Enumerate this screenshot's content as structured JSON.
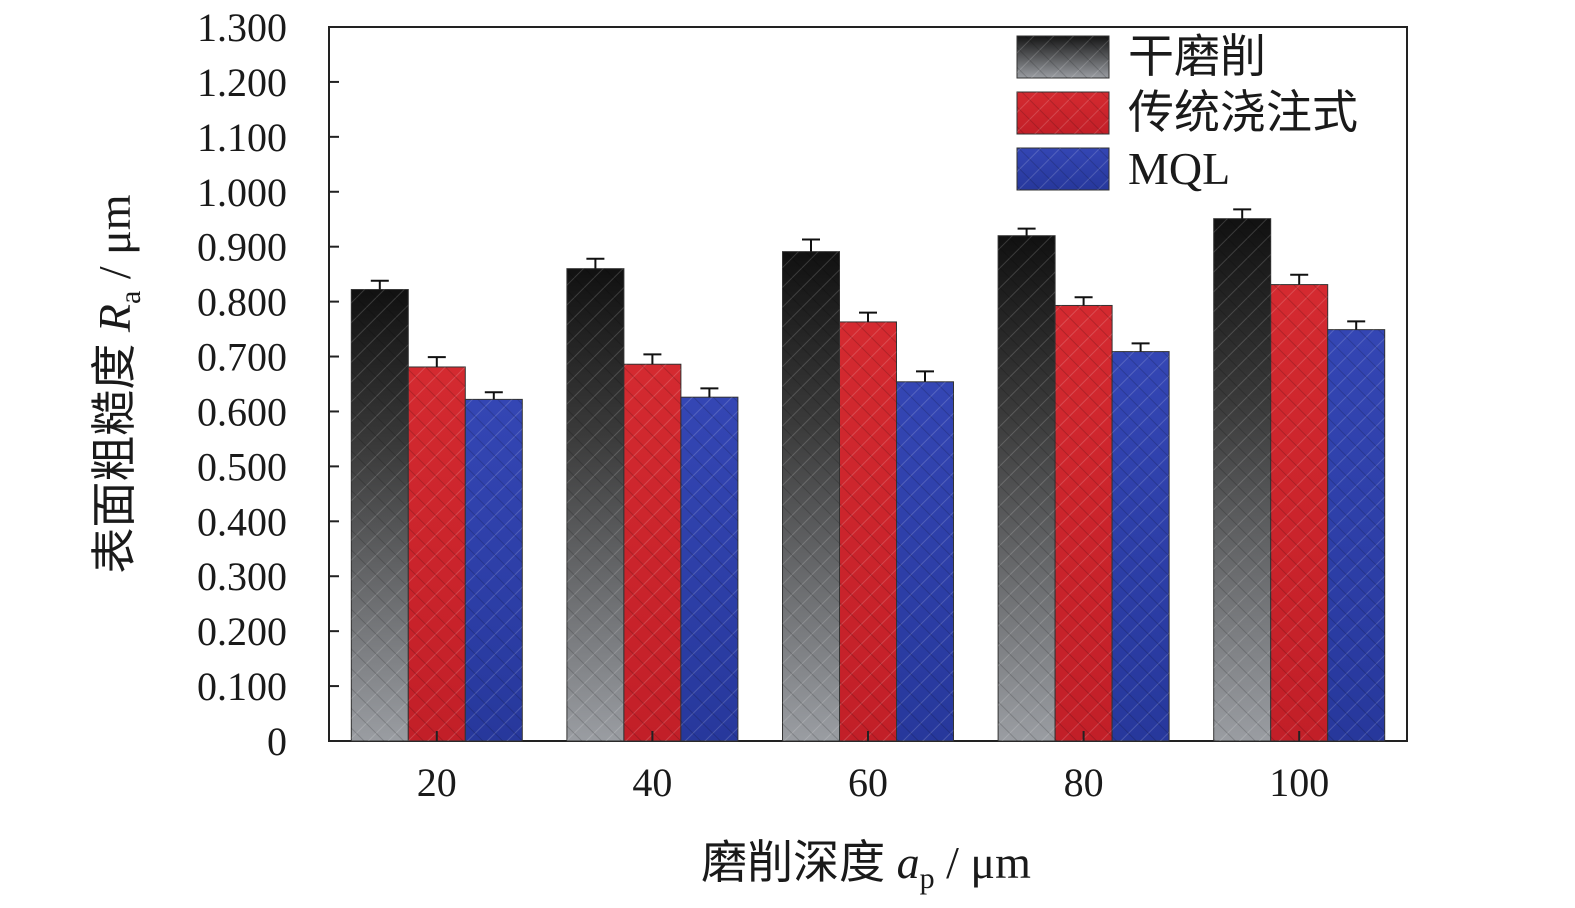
{
  "chart_data": {
    "type": "bar",
    "categories": [
      "20",
      "40",
      "60",
      "80",
      "100"
    ],
    "series": [
      {
        "name": "干磨削",
        "values": [
          0.822,
          0.86,
          0.891,
          0.92,
          0.951
        ],
        "errors": [
          0.016,
          0.018,
          0.022,
          0.013,
          0.017
        ],
        "color": "#1a1a1a"
      },
      {
        "name": "传统浇注式",
        "values": [
          0.681,
          0.686,
          0.763,
          0.793,
          0.831
        ],
        "errors": [
          0.018,
          0.018,
          0.017,
          0.015,
          0.018
        ],
        "color": "#d0232a"
      },
      {
        "name": "MQL",
        "values": [
          0.622,
          0.626,
          0.654,
          0.709,
          0.749
        ],
        "errors": [
          0.013,
          0.016,
          0.019,
          0.015,
          0.015
        ],
        "color": "#2d3fa8"
      }
    ],
    "yticks": [
      "0",
      "0.100",
      "0.200",
      "0.300",
      "0.400",
      "0.500",
      "0.600",
      "0.700",
      "0.800",
      "0.900",
      "1.000",
      "1.100",
      "1.200",
      "1.300"
    ],
    "ylim": [
      0,
      1.3
    ],
    "xlabel": {
      "main": "磨削深度 ",
      "var": "a",
      "sub": "p",
      "unit": " / μm"
    },
    "ylabel": {
      "main": "表面粗糙度 ",
      "var": "R",
      "sub": "a",
      "unit": " / μm"
    },
    "legend_position": "top-right",
    "grid": false
  }
}
